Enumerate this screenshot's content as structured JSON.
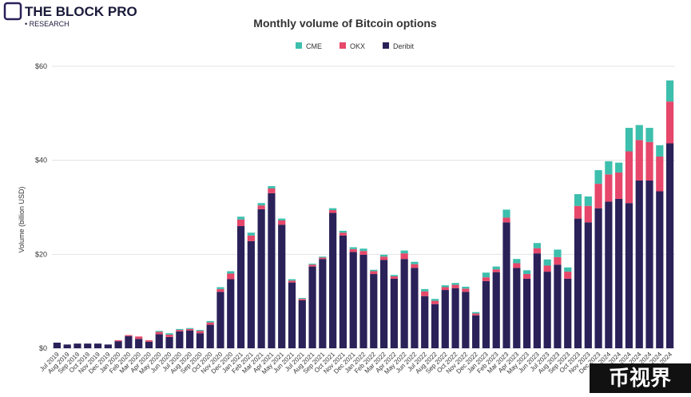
{
  "brand": {
    "name": "THE BLOCK PRO",
    "tagline": "• RESEARCH"
  },
  "watermark": "币视界",
  "chart_data": {
    "type": "stacked_bar",
    "title": "Monthly volume of Bitcoin options",
    "ylabel": "Volume (billion USD)",
    "categories": [
      "Jul 2019",
      "Aug 2019",
      "Sep 2019",
      "Oct 2019",
      "Nov 2019",
      "Dec 2019",
      "Jan 2020",
      "Feb 2020",
      "Mar 2020",
      "Apr 2020",
      "May 2020",
      "Jun 2020",
      "Jul 2020",
      "Aug 2020",
      "Sep 2020",
      "Oct 2020",
      "Nov 2020",
      "Dec 2020",
      "Jan 2021",
      "Feb 2021",
      "Mar 2021",
      "Apr 2021",
      "May 2021",
      "Jun 2021",
      "Jul 2021",
      "Aug 2021",
      "Sep 2021",
      "Oct 2021",
      "Nov 2021",
      "Dec 2021",
      "Jan 2022",
      "Feb 2022",
      "Mar 2022",
      "Apr 2022",
      "May 2022",
      "Jun 2022",
      "Jul 2022",
      "Aug 2022",
      "Sep 2022",
      "Oct 2022",
      "Nov 2022",
      "Dec 2022",
      "Jan 2023",
      "Feb 2023",
      "Mar 2023",
      "Apr 2023",
      "May 2023",
      "Jun 2023",
      "Jul 2023",
      "Aug 2023",
      "Sep 2023",
      "Oct 2023",
      "Nov 2023",
      "Dec 2023",
      "Jan 2024",
      "Feb 2024",
      "Mar 2024",
      "Apr 2024",
      "May 2024",
      "Jun 2024",
      "Jul 2024"
    ],
    "series": [
      {
        "name": "Deribit",
        "color": "#2b2159",
        "values": [
          1.2,
          0.8,
          1.0,
          1.0,
          1.0,
          0.8,
          1.5,
          2.6,
          2.0,
          1.4,
          3.0,
          2.4,
          3.6,
          3.8,
          3.2,
          5.0,
          12.0,
          14.7,
          26.0,
          22.8,
          29.6,
          33.0,
          26.3,
          14.0,
          10.2,
          17.4,
          19.0,
          28.8,
          24.0,
          20.5,
          19.9,
          15.8,
          18.8,
          14.8,
          19.0,
          17.1,
          11.1,
          9.4,
          12.4,
          12.8,
          12.0,
          7.0,
          14.3,
          16.2,
          26.8,
          17.1,
          14.8,
          20.2,
          16.3,
          17.8,
          14.8,
          27.6,
          26.8,
          29.8,
          31.2,
          31.8,
          30.9,
          35.7,
          35.7,
          33.4,
          43.6
        ]
      },
      {
        "name": "OKX",
        "color": "#e6476a",
        "values": [
          0,
          0,
          0,
          0,
          0,
          0,
          0.2,
          0.2,
          0.5,
          0.3,
          0.5,
          0.5,
          0.3,
          0.3,
          0.5,
          0.5,
          0.6,
          1.2,
          1.4,
          1.2,
          0.8,
          1.0,
          0.9,
          0.4,
          0.3,
          0.4,
          0.3,
          0.6,
          0.6,
          0.6,
          0.8,
          0.6,
          0.7,
          0.5,
          1.2,
          0.8,
          1.0,
          0.7,
          0.6,
          0.7,
          0.7,
          0.4,
          0.8,
          0.6,
          1.0,
          1.0,
          1.0,
          1.1,
          1.3,
          1.6,
          1.5,
          2.7,
          3.5,
          5.2,
          5.8,
          5.6,
          11.0,
          8.6,
          8.2,
          7.4,
          8.9
        ]
      },
      {
        "name": "CME",
        "color": "#3dbfad",
        "values": [
          0,
          0,
          0,
          0,
          0,
          0,
          0,
          0,
          0,
          0,
          0.2,
          0.3,
          0.2,
          0.2,
          0.2,
          0.3,
          0.4,
          0.5,
          0.6,
          0.6,
          0.5,
          0.5,
          0.4,
          0.3,
          0.2,
          0.2,
          0.2,
          0.4,
          0.4,
          0.4,
          0.5,
          0.3,
          0.4,
          0.3,
          0.6,
          0.5,
          0.5,
          0.4,
          0.4,
          0.4,
          0.4,
          0.3,
          1.0,
          0.6,
          1.7,
          0.9,
          0.8,
          1.1,
          1.3,
          1.6,
          0.9,
          2.5,
          2.0,
          2.9,
          2.8,
          2.1,
          5.0,
          3.2,
          3.0,
          2.4,
          4.5
        ]
      }
    ],
    "legend_order": [
      2,
      1,
      0
    ],
    "ylim": [
      0,
      60
    ],
    "yticks": [
      {
        "value": 0,
        "label": "$0"
      },
      {
        "value": 20,
        "label": "$20"
      },
      {
        "value": 40,
        "label": "$40"
      },
      {
        "value": 60,
        "label": "$60"
      }
    ],
    "grid": true
  }
}
